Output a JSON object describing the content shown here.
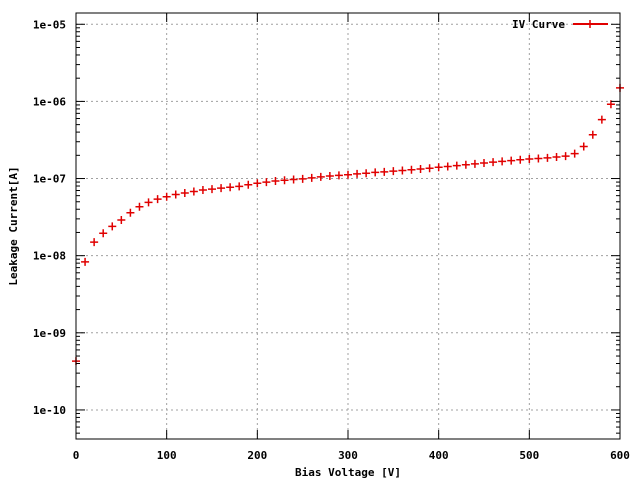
{
  "chart_data": {
    "type": "scatter",
    "xlabel": "Bias Voltage [V]",
    "ylabel": "Leakage Current[A]",
    "xlim": [
      0,
      600
    ],
    "ylim": [
      4.2e-11,
      1.4e-05
    ],
    "y_scale": "log",
    "grid": true,
    "legend_position": "top-right",
    "x_ticks": [
      "0",
      "100",
      "200",
      "300",
      "400",
      "500",
      "600"
    ],
    "x_tick_values": [
      0,
      100,
      200,
      300,
      400,
      500,
      600
    ],
    "y_ticks": [
      "1e-10",
      "1e-09",
      "1e-08",
      "1e-07",
      "1e-06",
      "1e-05"
    ],
    "y_tick_values": [
      1e-10,
      1e-09,
      1e-08,
      1e-07,
      1e-06,
      1e-05
    ],
    "series": [
      {
        "name": "IV Curve",
        "color": "#e00000",
        "marker": "plus",
        "x": [
          0,
          10,
          20,
          30,
          40,
          50,
          60,
          70,
          80,
          90,
          100,
          110,
          120,
          130,
          140,
          150,
          160,
          170,
          180,
          190,
          200,
          210,
          220,
          230,
          240,
          250,
          260,
          270,
          280,
          290,
          300,
          310,
          320,
          330,
          340,
          350,
          360,
          370,
          380,
          390,
          400,
          410,
          420,
          430,
          440,
          450,
          460,
          470,
          480,
          490,
          500,
          510,
          520,
          530,
          540,
          550,
          560,
          570,
          580,
          590,
          600
        ],
        "y": [
          4.3e-10,
          8.3e-09,
          1.5e-08,
          1.95e-08,
          2.4e-08,
          2.9e-08,
          3.6e-08,
          4.3e-08,
          4.9e-08,
          5.4e-08,
          5.8e-08,
          6.2e-08,
          6.5e-08,
          6.8e-08,
          7.1e-08,
          7.3e-08,
          7.5e-08,
          7.7e-08,
          7.9e-08,
          8.3e-08,
          8.7e-08,
          9e-08,
          9.3e-08,
          9.5e-08,
          9.7e-08,
          9.9e-08,
          1.02e-07,
          1.05e-07,
          1.08e-07,
          1.1e-07,
          1.12e-07,
          1.15e-07,
          1.17e-07,
          1.2e-07,
          1.22e-07,
          1.25e-07,
          1.27e-07,
          1.3e-07,
          1.33e-07,
          1.36e-07,
          1.4e-07,
          1.43e-07,
          1.47e-07,
          1.51e-07,
          1.55e-07,
          1.59e-07,
          1.63e-07,
          1.67e-07,
          1.71e-07,
          1.75e-07,
          1.79e-07,
          1.82e-07,
          1.85e-07,
          1.9e-07,
          1.95e-07,
          2.1e-07,
          2.6e-07,
          3.7e-07,
          5.8e-07,
          9.2e-07,
          1.5e-06
        ]
      }
    ]
  }
}
